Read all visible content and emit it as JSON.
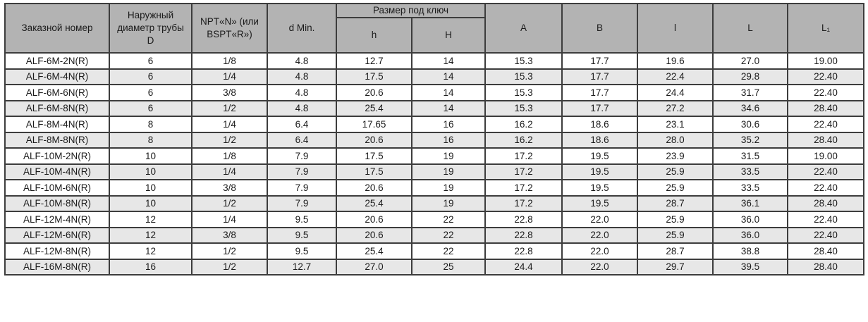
{
  "table": {
    "headers": {
      "order_number": "Заказной номер",
      "outer_diameter": "Наружный диаметр трубы D",
      "npt_bspt": "NPT«N» (или BSPT«R»)",
      "d_min": "d Min.",
      "wrench_size_group": "Размер под ключ",
      "h_small": "h",
      "h_capital": "H",
      "a": "A",
      "b": "B",
      "l_small": "l",
      "l_capital": "L",
      "l_sub1": "L₁"
    },
    "column_keys": [
      "order_number",
      "outer_diameter",
      "npt_bspt",
      "d_min",
      "h_small",
      "h_capital",
      "a",
      "b",
      "l_small",
      "l_capital",
      "l_sub1"
    ],
    "rows": [
      [
        "ALF-6M-2N(R)",
        "6",
        "1/8",
        "4.8",
        "12.7",
        "14",
        "15.3",
        "17.7",
        "19.6",
        "27.0",
        "19.00"
      ],
      [
        "ALF-6M-4N(R)",
        "6",
        "1/4",
        "4.8",
        "17.5",
        "14",
        "15.3",
        "17.7",
        "22.4",
        "29.8",
        "22.40"
      ],
      [
        "ALF-6M-6N(R)",
        "6",
        "3/8",
        "4.8",
        "20.6",
        "14",
        "15.3",
        "17.7",
        "24.4",
        "31.7",
        "22.40"
      ],
      [
        "ALF-6M-8N(R)",
        "6",
        "1/2",
        "4.8",
        "25.4",
        "14",
        "15.3",
        "17.7",
        "27.2",
        "34.6",
        "28.40"
      ],
      [
        "ALF-8M-4N(R)",
        "8",
        "1/4",
        "6.4",
        "17.65",
        "16",
        "16.2",
        "18.6",
        "23.1",
        "30.6",
        "22.40"
      ],
      [
        "ALF-8M-8N(R)",
        "8",
        "1/2",
        "6.4",
        "20.6",
        "16",
        "16.2",
        "18.6",
        "28.0",
        "35.2",
        "28.40"
      ],
      [
        "ALF-10M-2N(R)",
        "10",
        "1/8",
        "7.9",
        "17.5",
        "19",
        "17.2",
        "19.5",
        "23.9",
        "31.5",
        "19.00"
      ],
      [
        "ALF-10M-4N(R)",
        "10",
        "1/4",
        "7.9",
        "17.5",
        "19",
        "17.2",
        "19.5",
        "25.9",
        "33.5",
        "22.40"
      ],
      [
        "ALF-10M-6N(R)",
        "10",
        "3/8",
        "7.9",
        "20.6",
        "19",
        "17.2",
        "19.5",
        "25.9",
        "33.5",
        "22.40"
      ],
      [
        "ALF-10M-8N(R)",
        "10",
        "1/2",
        "7.9",
        "25.4",
        "19",
        "17.2",
        "19.5",
        "28.7",
        "36.1",
        "28.40"
      ],
      [
        "ALF-12M-4N(R)",
        "12",
        "1/4",
        "9.5",
        "20.6",
        "22",
        "22.8",
        "22.0",
        "25.9",
        "36.0",
        "22.40"
      ],
      [
        "ALF-12M-6N(R)",
        "12",
        "3/8",
        "9.5",
        "20.6",
        "22",
        "22.8",
        "22.0",
        "25.9",
        "36.0",
        "22.40"
      ],
      [
        "ALF-12M-8N(R)",
        "12",
        "1/2",
        "9.5",
        "25.4",
        "22",
        "22.8",
        "22.0",
        "28.7",
        "38.8",
        "28.40"
      ],
      [
        "ALF-16M-8N(R)",
        "16",
        "1/2",
        "12.7",
        "27.0",
        "25",
        "24.4",
        "22.0",
        "29.7",
        "39.5",
        "28.40"
      ]
    ]
  },
  "colors": {
    "header_bg": "#b3b3b3",
    "stripe_bg": "#e7e7e7",
    "border": "#3d3d3d",
    "text": "#1b1b1b"
  }
}
